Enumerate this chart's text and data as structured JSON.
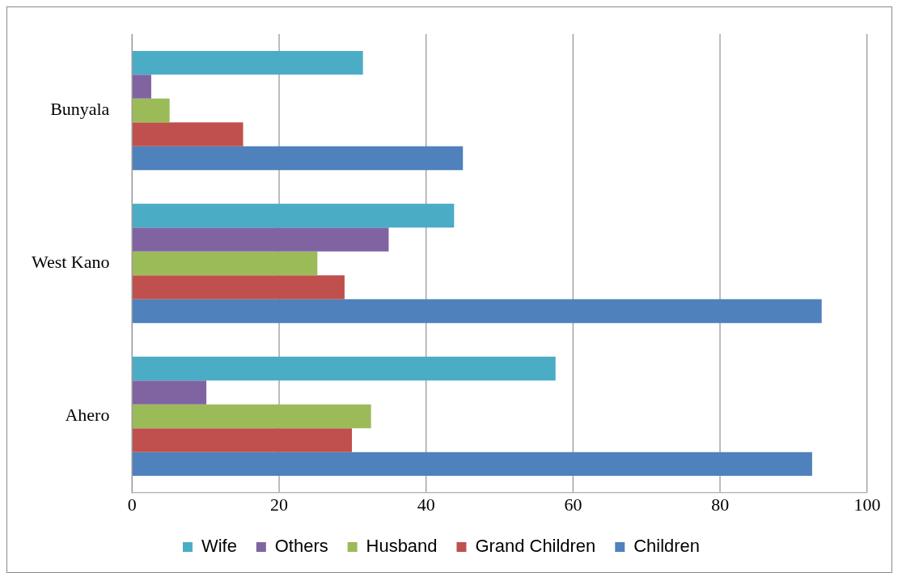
{
  "chart_data": {
    "type": "bar",
    "orientation": "horizontal",
    "categories": [
      "Bunyala",
      "West Kano",
      "Ahero"
    ],
    "series": [
      {
        "name": "Wife",
        "color": "#4bacc6",
        "values": [
          31.4,
          43.8,
          57.6
        ]
      },
      {
        "name": "Others",
        "color": "#8064a2",
        "values": [
          2.6,
          34.9,
          10.1
        ]
      },
      {
        "name": "Husband",
        "color": "#9bbb59",
        "values": [
          5.1,
          25.2,
          32.5
        ]
      },
      {
        "name": "Grand Children",
        "color": "#c0504d",
        "values": [
          15.1,
          28.9,
          29.9
        ]
      },
      {
        "name": "Children",
        "color": "#4f81bd",
        "values": [
          45.0,
          93.8,
          92.5
        ]
      }
    ],
    "xlim": [
      0,
      100
    ],
    "xticks": [
      0,
      20,
      40,
      60,
      80,
      100
    ],
    "grid": "x",
    "legend": "bottom"
  }
}
